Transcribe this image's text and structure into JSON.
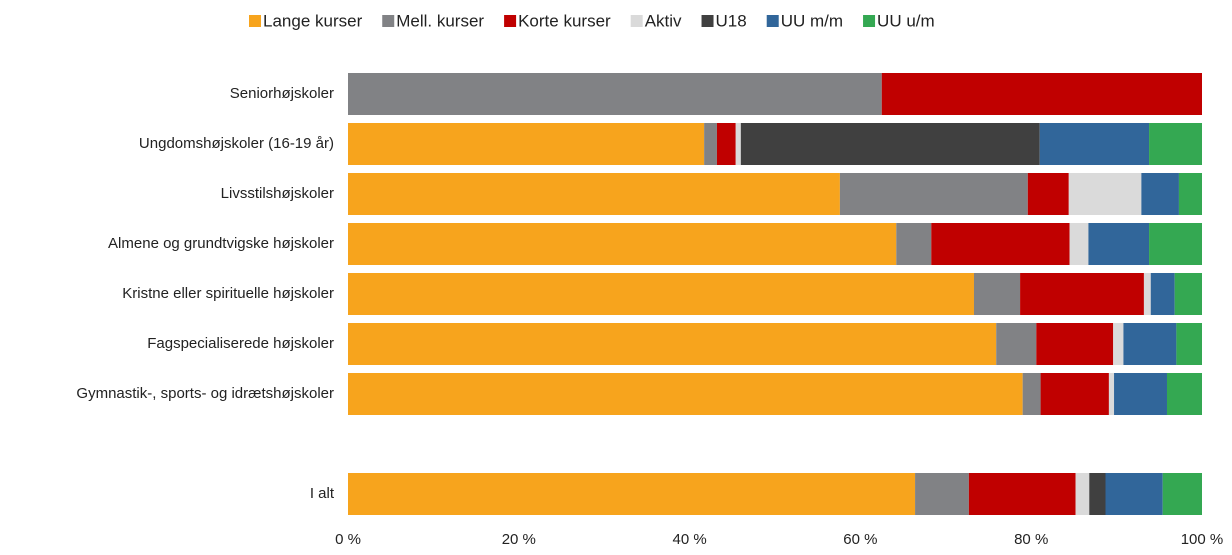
{
  "chart_data": {
    "type": "stacked_bar_horizontal",
    "categories": [
      "Seniorhøjskoler",
      "Ungdomshøjskoler (16-19 år)",
      "Livsstilshøjskoler",
      "Almene og grundtvigske højskoler",
      "Kristne eller spirituelle højskoler",
      "Fagspecialiserede højskoler",
      "Gymnastik-, sports- og idrætshøjskoler",
      null,
      "I alt"
    ],
    "series": [
      {
        "name": "Lange kurser",
        "color": "#f7a41d",
        "values": [
          0,
          41.7,
          57.6,
          64.2,
          73.3,
          75.9,
          79.0,
          null,
          66.4
        ]
      },
      {
        "name": "Mell. kurser",
        "color": "#818285",
        "values": [
          62.5,
          1.5,
          22.0,
          4.1,
          5.4,
          4.7,
          2.1,
          null,
          6.3
        ]
      },
      {
        "name": "Korte kurser",
        "color": "#c00000",
        "values": [
          37.5,
          2.2,
          4.8,
          16.2,
          14.5,
          9.0,
          8.0,
          null,
          12.5
        ]
      },
      {
        "name": "Aktiv",
        "color": "#dadada",
        "values": [
          0,
          0.6,
          8.5,
          2.2,
          0.8,
          1.2,
          0.6,
          null,
          1.6
        ]
      },
      {
        "name": "U18",
        "color": "#404040",
        "values": [
          0,
          35.0,
          0,
          0,
          0,
          0,
          0,
          null,
          1.9
        ]
      },
      {
        "name": "UU m/m",
        "color": "#31669a",
        "values": [
          0,
          12.8,
          4.4,
          7.1,
          2.8,
          6.2,
          6.2,
          null,
          6.7
        ]
      },
      {
        "name": "UU u/m",
        "color": "#34a852",
        "values": [
          0,
          6.2,
          2.7,
          6.2,
          3.2,
          3.0,
          4.1,
          null,
          4.6
        ]
      }
    ],
    "xlim": [
      0,
      100
    ],
    "xticks": [
      {
        "value": 0,
        "label": "0 %"
      },
      {
        "value": 20,
        "label": "20 %"
      },
      {
        "value": 40,
        "label": "40 %"
      },
      {
        "value": 60,
        "label": "60 %"
      },
      {
        "value": 80,
        "label": "80 %"
      },
      {
        "value": 100,
        "label": "100 %"
      }
    ],
    "legend": "top"
  }
}
